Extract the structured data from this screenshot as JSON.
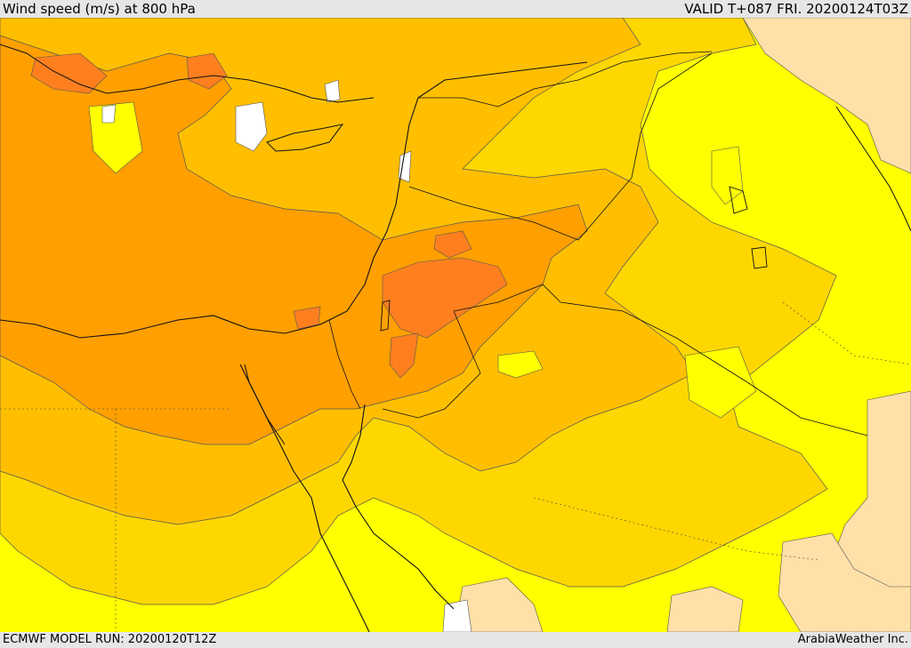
{
  "header": {
    "title": "Wind speed (m/s) at 800 hPa",
    "valid": "VALID T+087 FRI. 20200124T03Z"
  },
  "footer": {
    "model_run": "ECMWF MODEL RUN: 20200120T12Z",
    "credit": "ArabiaWeather Inc."
  },
  "palette": {
    "very_light": "#ffe0a8",
    "yellow": "#ffff00",
    "gold": "#ffd700",
    "amber": "#ffbf00",
    "orange": "#ff9f00",
    "dark_orange": "#ff7f1f",
    "white": "#ffffff",
    "line": "#333333"
  }
}
